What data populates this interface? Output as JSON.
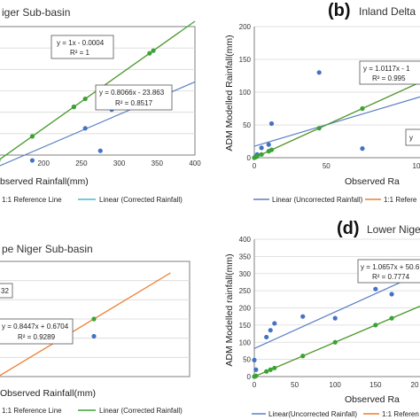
{
  "colors": {
    "uncorrected_pts": "#4472c4",
    "corrected_pts": "#3aa335",
    "reference_line": "#ed7d31",
    "corrected_line": "#3aa335",
    "uncorrected_line": "#5b7fc4",
    "corrected_line_alt": "#4bb8c9"
  },
  "chart_data": [
    {
      "panel": "a",
      "type": "scatter",
      "title": "iger Sub-basin",
      "xlabel": "bserved Rainfall(mm)",
      "ylabel": "",
      "xticks": [
        "200",
        "250",
        "300",
        "350",
        "400"
      ],
      "yticks": [],
      "xlim": [
        140,
        400
      ],
      "ylim": [
        150,
        390
      ],
      "grid": true,
      "series": [
        {
          "kind": "uncorrected",
          "x": [
            185,
            240,
            255,
            275,
            290,
            345
          ],
          "y": [
            140,
            240,
            200,
            158,
            235,
            255
          ]
        },
        {
          "kind": "corrected",
          "x": [
            140,
            185,
            240,
            255,
            275,
            340,
            345
          ],
          "y": [
            140,
            185,
            240,
            255,
            275,
            340,
            345
          ]
        },
        {
          "kind": "reference",
          "x": [
            140,
            380
          ],
          "y": [
            140,
            380
          ]
        }
      ],
      "equations": [
        {
          "line1": "y = 1x - 0.0004",
          "line2": "R² = 1"
        },
        {
          "line1": "y = 0.8066x - 23.863",
          "line2": "R² = 0.8517"
        }
      ],
      "legend": [
        "1:1 Reference Line",
        "Linear (Corrected Rainfall)"
      ]
    },
    {
      "panel": "b",
      "letter": "(b)",
      "type": "scatter",
      "title": "Inland Delta",
      "xlabel": "Observed Ra",
      "ylabel": "ADM Modelled Rainfall(mm)",
      "xticks": [
        "0",
        "50",
        "10"
      ],
      "yticks": [
        "0",
        "50",
        "100",
        "150",
        "200"
      ],
      "xlim": [
        0,
        115
      ],
      "ylim": [
        0,
        200
      ],
      "grid": true,
      "series": [
        {
          "kind": "uncorrected",
          "x": [
            0,
            1,
            2,
            5,
            10,
            12,
            45,
            75
          ],
          "y": [
            0,
            2,
            5,
            15,
            20,
            52,
            130,
            14
          ]
        },
        {
          "kind": "corrected",
          "x": [
            0,
            1,
            2,
            5,
            10,
            12,
            45,
            75
          ],
          "y": [
            0,
            1,
            2,
            5,
            10,
            12,
            45,
            75
          ]
        },
        {
          "kind": "reference",
          "x": [
            0,
            115
          ],
          "y": [
            0,
            115
          ]
        }
      ],
      "equations": [
        {
          "line1": "y = 1.0117x - 1",
          "line2": "R² = 0.995"
        },
        {
          "line1": "y",
          "line2": ""
        }
      ],
      "legend": [
        "Linear (Uncorrected Rainfall)",
        "1:1 Refere"
      ]
    },
    {
      "panel": "c",
      "type": "scatter",
      "title": "pe Niger Sub-basin",
      "xlabel": "Observed Rainfall(mm)",
      "ylabel": "",
      "xticks": [],
      "yticks": [],
      "xlim": [
        0,
        100
      ],
      "ylim": [
        0,
        100
      ],
      "grid": true,
      "series": [
        {
          "kind": "uncorrected",
          "x": [
            50
          ],
          "y": [
            35
          ]
        },
        {
          "kind": "corrected",
          "x": [
            50
          ],
          "y": [
            50
          ]
        },
        {
          "kind": "reference",
          "x": [
            0,
            90
          ],
          "y": [
            0,
            90
          ]
        }
      ],
      "equations": [
        {
          "line1": "32",
          "line2": ""
        },
        {
          "line1": "y = 0.8447x + 0.6704",
          "line2": "R² = 0.9289"
        }
      ],
      "legend": [
        "1:1 Reference Line",
        "Linear (Corrected Rainfall)"
      ]
    },
    {
      "panel": "d",
      "letter": "(d)",
      "type": "scatter",
      "title": "Lower Nige",
      "xlabel": "Observed Ra",
      "ylabel": "ADM Modelled rainfall(mm)",
      "xticks": [
        "0",
        "50",
        "100",
        "150",
        "20"
      ],
      "yticks": [
        "0",
        "50",
        "100",
        "150",
        "200",
        "250",
        "300",
        "350",
        "400"
      ],
      "xlim": [
        0,
        205
      ],
      "ylim": [
        0,
        400
      ],
      "grid": true,
      "series": [
        {
          "kind": "uncorrected",
          "x": [
            0,
            2,
            15,
            20,
            25,
            60,
            100,
            150,
            170
          ],
          "y": [
            48,
            20,
            115,
            135,
            155,
            175,
            170,
            255,
            240
          ]
        },
        {
          "kind": "corrected",
          "x": [
            0,
            2,
            15,
            20,
            25,
            60,
            100,
            150,
            170
          ],
          "y": [
            0,
            2,
            15,
            20,
            25,
            60,
            100,
            150,
            170
          ]
        },
        {
          "kind": "reference",
          "x": [
            0,
            205
          ],
          "y": [
            0,
            205
          ]
        }
      ],
      "equations": [
        {
          "line1": "y = 1.0657x + 50.6",
          "line2": "R² = 0.7774"
        }
      ],
      "legend": [
        "Linear(Uncorrected Rainfall)",
        "1:1 Referen"
      ]
    }
  ]
}
